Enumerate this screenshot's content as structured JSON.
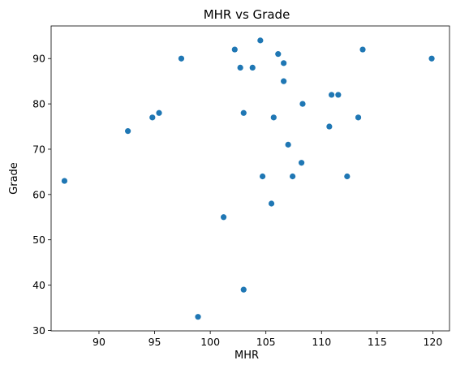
{
  "chart_data": {
    "type": "scatter",
    "title": "MHR vs Grade",
    "xlabel": "MHR",
    "ylabel": "Grade",
    "xlim": [
      85.7,
      121.5
    ],
    "ylim": [
      29.9,
      97.2
    ],
    "xticks": [
      90,
      95,
      100,
      105,
      110,
      115,
      120
    ],
    "yticks": [
      30,
      40,
      50,
      60,
      70,
      80,
      90
    ],
    "grid": false,
    "marker_color": "#1f77b4",
    "series": [
      {
        "points": [
          {
            "x": 86.9,
            "y": 63
          },
          {
            "x": 92.6,
            "y": 74
          },
          {
            "x": 94.8,
            "y": 77
          },
          {
            "x": 95.4,
            "y": 78
          },
          {
            "x": 97.4,
            "y": 90
          },
          {
            "x": 98.9,
            "y": 33
          },
          {
            "x": 101.2,
            "y": 55
          },
          {
            "x": 102.2,
            "y": 92
          },
          {
            "x": 102.7,
            "y": 88
          },
          {
            "x": 103.0,
            "y": 78
          },
          {
            "x": 103.0,
            "y": 39
          },
          {
            "x": 103.8,
            "y": 88
          },
          {
            "x": 104.5,
            "y": 94
          },
          {
            "x": 104.7,
            "y": 64
          },
          {
            "x": 105.5,
            "y": 58
          },
          {
            "x": 105.7,
            "y": 77
          },
          {
            "x": 106.1,
            "y": 91
          },
          {
            "x": 106.6,
            "y": 89
          },
          {
            "x": 106.6,
            "y": 85
          },
          {
            "x": 107.0,
            "y": 71
          },
          {
            "x": 107.4,
            "y": 64
          },
          {
            "x": 108.2,
            "y": 67
          },
          {
            "x": 108.3,
            "y": 80
          },
          {
            "x": 110.7,
            "y": 75
          },
          {
            "x": 110.9,
            "y": 82
          },
          {
            "x": 111.5,
            "y": 82
          },
          {
            "x": 112.3,
            "y": 64
          },
          {
            "x": 113.3,
            "y": 77
          },
          {
            "x": 113.7,
            "y": 92
          },
          {
            "x": 119.9,
            "y": 90
          }
        ]
      }
    ]
  }
}
